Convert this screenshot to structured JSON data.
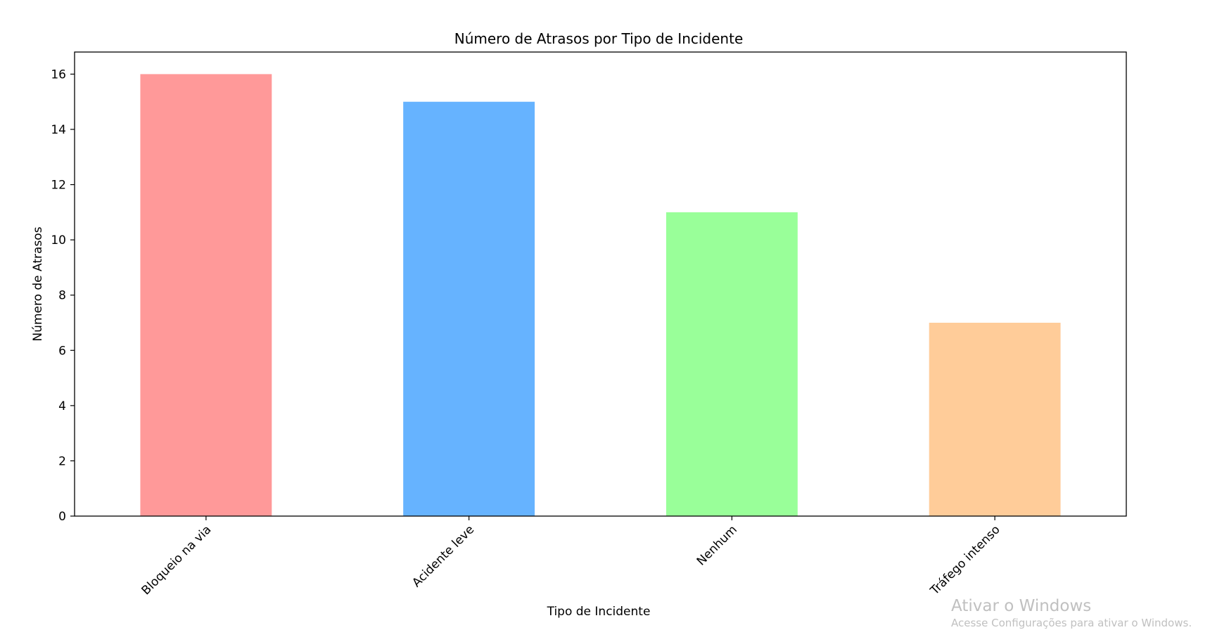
{
  "chart_data": {
    "type": "bar",
    "title": "Número de Atrasos por Tipo de Incidente",
    "xlabel": "Tipo de Incidente",
    "ylabel": "Número de Atrasos",
    "categories": [
      "Bloqueio na via",
      "Acidente leve",
      "Nenhum",
      "Tráfego intenso"
    ],
    "values": [
      16,
      15,
      11,
      7
    ],
    "colors": [
      "#ff9999",
      "#66b3ff",
      "#99ff99",
      "#ffcc99"
    ],
    "ylim": [
      0,
      16.8
    ],
    "yticks": [
      0,
      2,
      4,
      6,
      8,
      10,
      12,
      14,
      16
    ],
    "xtick_rotation": 45,
    "grid": false,
    "legend": false
  },
  "watermark": {
    "title": "Ativar o Windows",
    "subtitle": "Acesse Configurações para ativar o Windows."
  }
}
